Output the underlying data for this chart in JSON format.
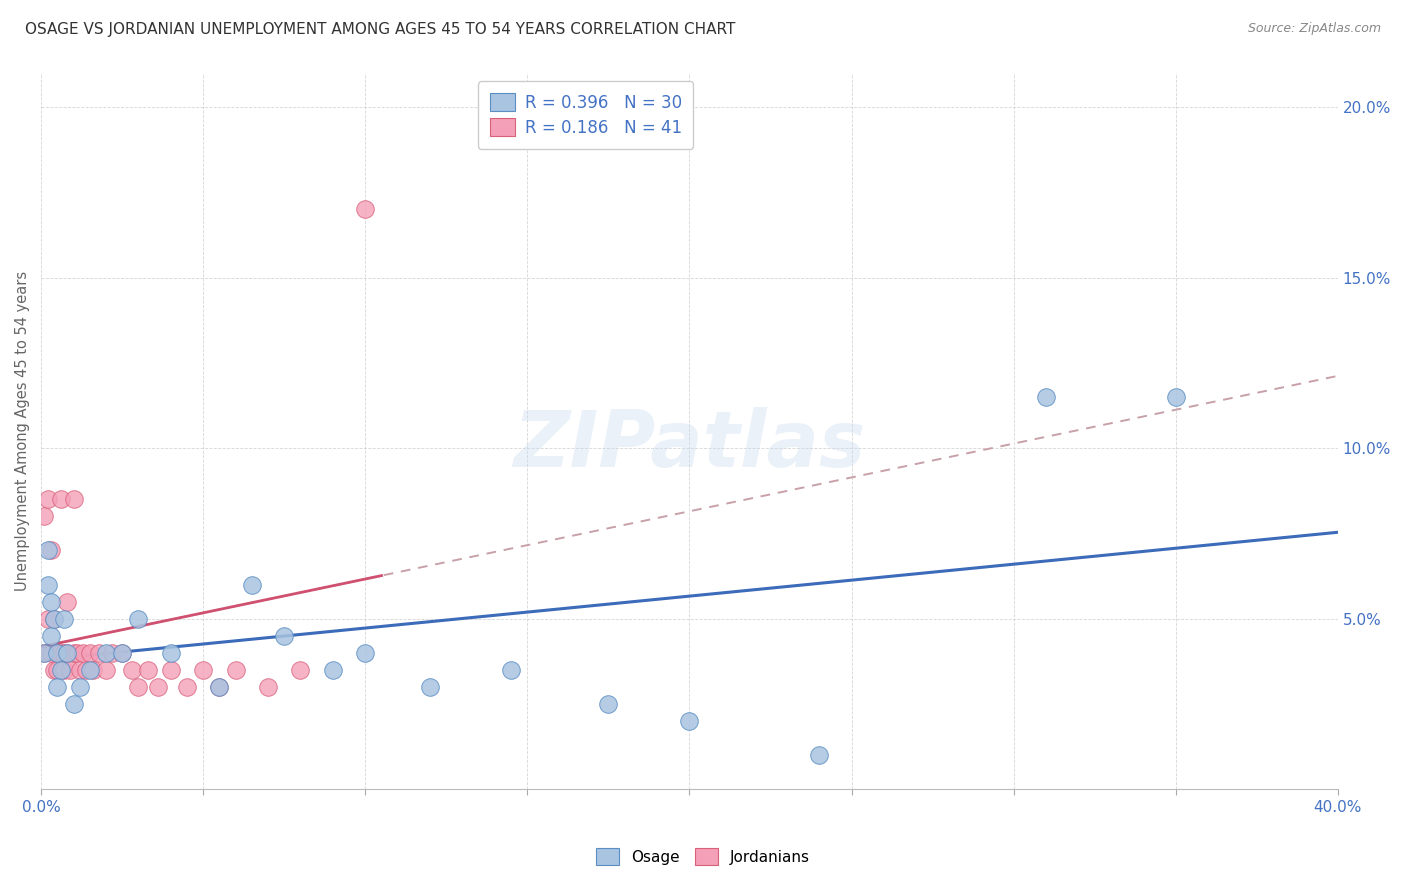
{
  "title": "OSAGE VS JORDANIAN UNEMPLOYMENT AMONG AGES 45 TO 54 YEARS CORRELATION CHART",
  "source": "Source: ZipAtlas.com",
  "ylabel": "Unemployment Among Ages 45 to 54 years",
  "xlim": [
    0.0,
    0.4
  ],
  "ylim": [
    0.0,
    0.21
  ],
  "x_ticks": [
    0.0,
    0.05,
    0.1,
    0.15,
    0.2,
    0.25,
    0.3,
    0.35,
    0.4
  ],
  "y_ticks": [
    0.0,
    0.05,
    0.1,
    0.15,
    0.2
  ],
  "osage_color": "#a8c4e0",
  "osage_edge_color": "#5b8ec4",
  "osage_line_color": "#3c6bba",
  "jordanian_color": "#f4a0b8",
  "jordanian_edge_color": "#d9607a",
  "jordanian_line_color": "#d05070",
  "jordanian_dash_color": "#c8a0a8",
  "background_color": "#ffffff",
  "grid_color": "#cccccc",
  "watermark": "ZIPatlas",
  "legend_R_osage": "0.396",
  "legend_N_osage": "30",
  "legend_R_jordanian": "0.186",
  "legend_N_jordanian": "41",
  "osage_x": [
    0.001,
    0.002,
    0.002,
    0.003,
    0.003,
    0.004,
    0.005,
    0.005,
    0.006,
    0.007,
    0.008,
    0.01,
    0.012,
    0.015,
    0.02,
    0.025,
    0.03,
    0.04,
    0.055,
    0.065,
    0.075,
    0.09,
    0.1,
    0.12,
    0.145,
    0.175,
    0.2,
    0.24,
    0.31,
    0.35
  ],
  "osage_y": [
    0.04,
    0.06,
    0.07,
    0.045,
    0.055,
    0.05,
    0.04,
    0.03,
    0.035,
    0.05,
    0.04,
    0.025,
    0.03,
    0.035,
    0.04,
    0.04,
    0.05,
    0.04,
    0.03,
    0.06,
    0.045,
    0.035,
    0.04,
    0.03,
    0.035,
    0.025,
    0.02,
    0.01,
    0.115,
    0.115
  ],
  "jordanian_x": [
    0.001,
    0.001,
    0.002,
    0.002,
    0.003,
    0.003,
    0.004,
    0.004,
    0.005,
    0.005,
    0.006,
    0.006,
    0.007,
    0.007,
    0.008,
    0.008,
    0.009,
    0.01,
    0.01,
    0.011,
    0.012,
    0.013,
    0.014,
    0.015,
    0.016,
    0.018,
    0.02,
    0.022,
    0.025,
    0.028,
    0.03,
    0.033,
    0.036,
    0.04,
    0.045,
    0.05,
    0.055,
    0.06,
    0.07,
    0.08,
    0.1
  ],
  "jordanian_y": [
    0.04,
    0.08,
    0.05,
    0.085,
    0.04,
    0.07,
    0.05,
    0.035,
    0.04,
    0.035,
    0.085,
    0.04,
    0.035,
    0.04,
    0.055,
    0.04,
    0.035,
    0.04,
    0.085,
    0.04,
    0.035,
    0.04,
    0.035,
    0.04,
    0.035,
    0.04,
    0.035,
    0.04,
    0.04,
    0.035,
    0.03,
    0.035,
    0.03,
    0.035,
    0.03,
    0.035,
    0.03,
    0.035,
    0.03,
    0.035,
    0.17
  ]
}
